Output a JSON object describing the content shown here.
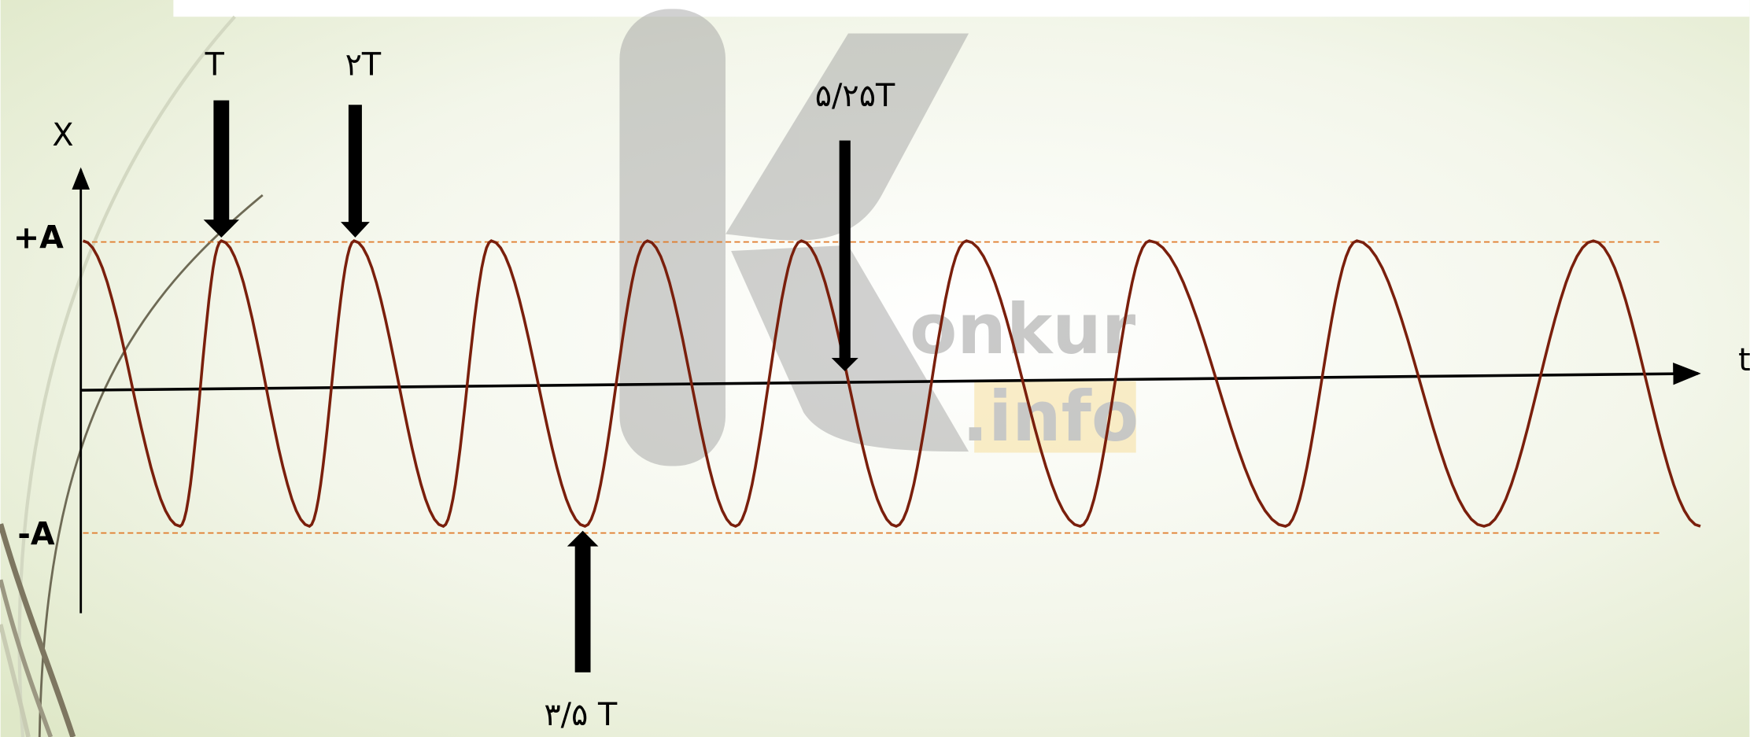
{
  "labels": {
    "x_axis": "X",
    "t_axis": "t",
    "plus_a": "+A",
    "minus_a": "-A"
  },
  "arrows": [
    {
      "label": "T"
    },
    {
      "label": "۲T"
    },
    {
      "label": "۵/۲۵T"
    },
    {
      "label": "۳/۵ T"
    }
  ],
  "watermark": {
    "brand": "onkur",
    "domain": ".info"
  }
}
